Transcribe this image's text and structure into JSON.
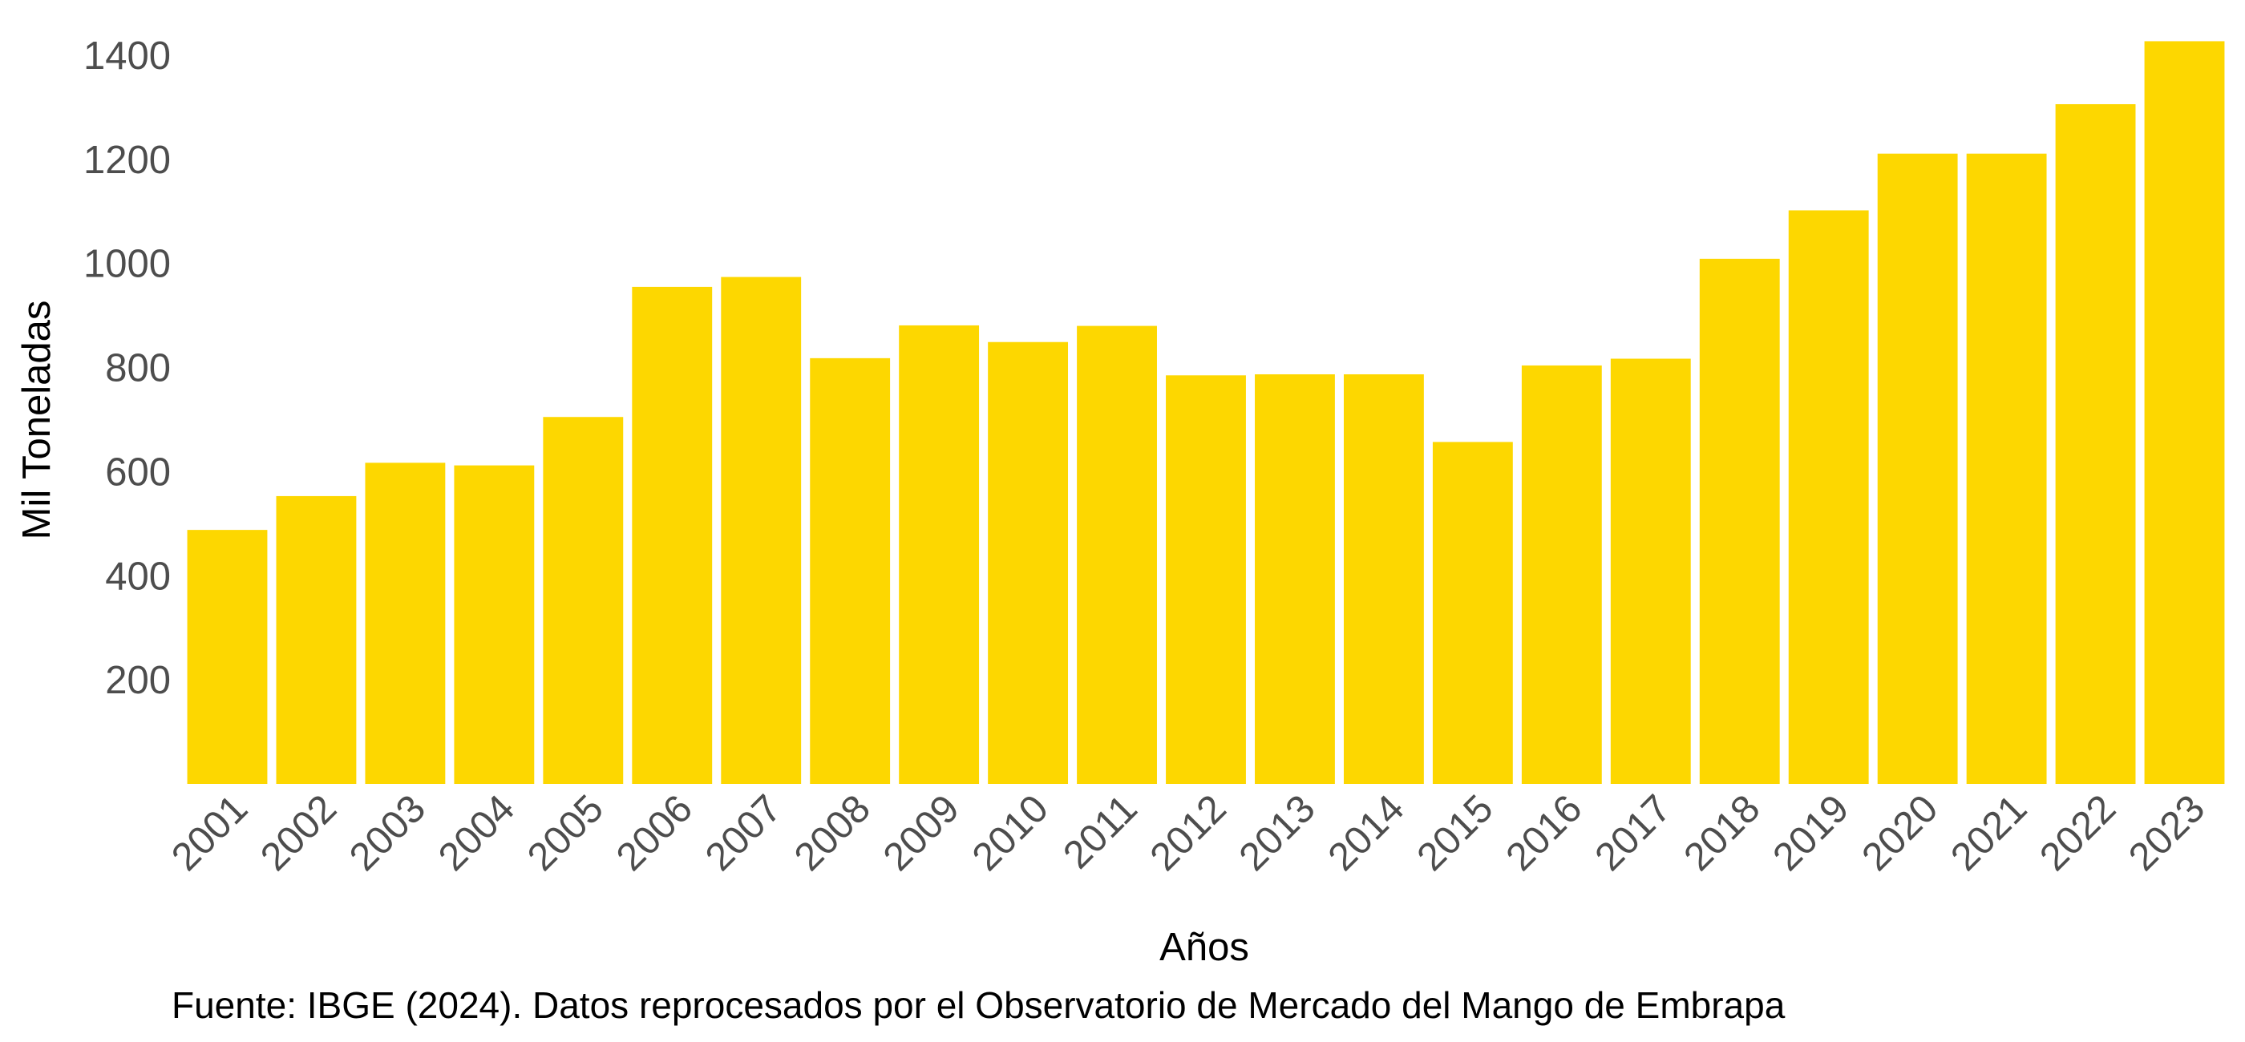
{
  "chart_data": {
    "type": "bar",
    "categories": [
      "2001",
      "2002",
      "2003",
      "2004",
      "2005",
      "2006",
      "2007",
      "2008",
      "2009",
      "2010",
      "2011",
      "2012",
      "2013",
      "2014",
      "2015",
      "2016",
      "2017",
      "2018",
      "2019",
      "2020",
      "2021",
      "2022",
      "2023"
    ],
    "values": [
      488,
      553,
      617,
      612,
      705,
      955,
      974,
      818,
      881,
      849,
      880,
      785,
      787,
      787,
      657,
      804,
      817,
      1009,
      1102,
      1211,
      1211,
      1306,
      1427
    ],
    "title": "",
    "xlabel": "Años",
    "ylabel": "Mil Toneladas",
    "ylim": [
      0,
      1460
    ],
    "yticks": [
      200,
      400,
      600,
      800,
      1000,
      1200,
      1400
    ],
    "ytick_labels": [
      "200",
      "400",
      "600",
      "800",
      "1000",
      "1200",
      "1400"
    ],
    "caption": "Fuente: IBGE (2024). Datos reprocesados por el Observatorio de Mercado del Mango de Embrapa",
    "bar_color": "#FDD700",
    "grid": false,
    "legend": "none"
  }
}
